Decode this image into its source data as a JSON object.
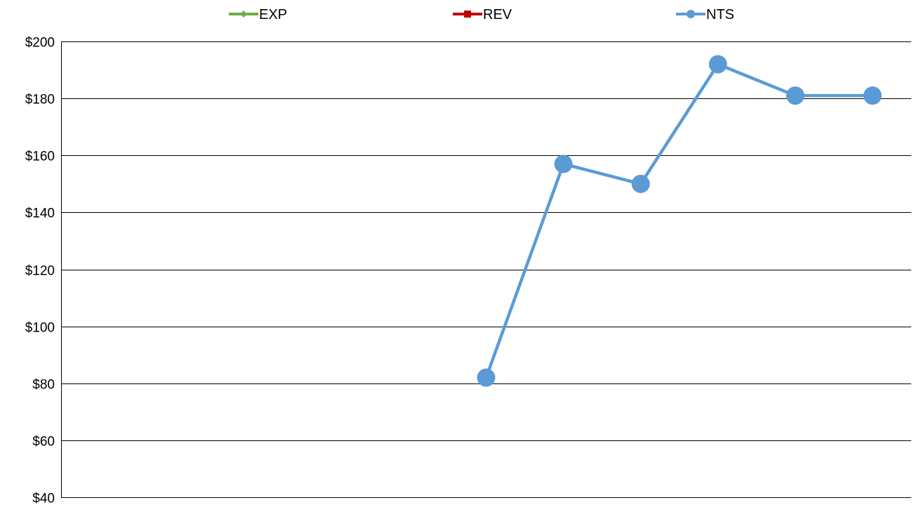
{
  "chart_data": {
    "type": "line",
    "title": "",
    "xlabel": "",
    "ylabel": "",
    "ylim": [
      40,
      200
    ],
    "y_ticks": [
      "$200",
      "$180",
      "$160",
      "$140",
      "$120",
      "$100",
      "$80",
      "$60",
      "$40"
    ],
    "y_tick_values": [
      200,
      180,
      160,
      140,
      120,
      100,
      80,
      60,
      40
    ],
    "grid": true,
    "legend_position": "top",
    "x_count": 11,
    "series": [
      {
        "name": "EXP",
        "color": "#70ad47",
        "marker": "diamond",
        "values": [
          null,
          null,
          null,
          null,
          null,
          null,
          null,
          null,
          null,
          null,
          null
        ]
      },
      {
        "name": "REV",
        "color": "#c00000",
        "marker": "square",
        "values": [
          null,
          null,
          null,
          null,
          null,
          null,
          null,
          null,
          null,
          null,
          null
        ]
      },
      {
        "name": "NTS",
        "color": "#5b9bd5",
        "marker": "circle",
        "values": [
          null,
          null,
          null,
          null,
          null,
          82,
          157,
          150,
          192,
          181,
          181
        ]
      }
    ]
  }
}
